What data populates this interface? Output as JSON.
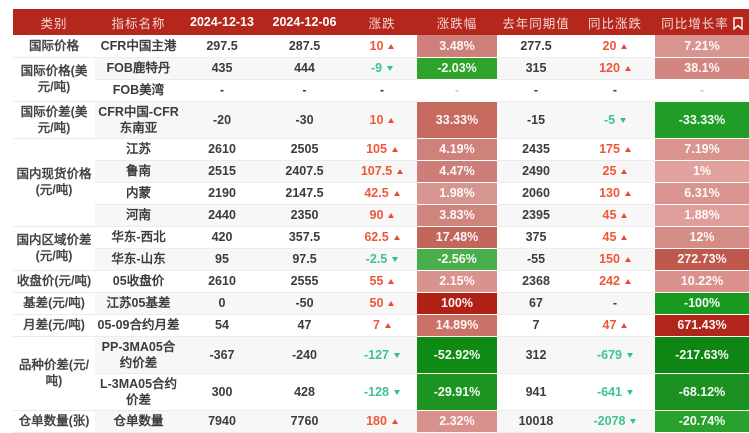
{
  "colors": {
    "header_bg": "#b5271c",
    "header_text": "#f3d7d3",
    "header_date_text": "#ffffff",
    "up_text": "#f0563a",
    "down_text": "#3fc48e",
    "up_arrow": "#e84c38",
    "down_arrow": "#34bf8b",
    "zebra_row_bg": "#f7f7f7",
    "pct_text": "#ffffff"
  },
  "table": {
    "columns": [
      "类别",
      "指标名称",
      "2024-12-13",
      "2024-12-06",
      "涨跌",
      "涨跌幅",
      "去年同期值",
      "同比涨跌",
      "同比增长率"
    ],
    "header_icon": "bookmark",
    "categories": [
      {
        "label": "国际价格",
        "span": 1
      },
      {
        "label": "国际价格(美元/吨)",
        "span": 2
      },
      {
        "label": "国际价差(美元/吨)",
        "span": 1
      },
      {
        "label": "国内现货价格(元/吨)",
        "span": 4
      },
      {
        "label": "国内区域价差(元/吨)",
        "span": 2
      },
      {
        "label": "收盘价(元/吨)",
        "span": 1
      },
      {
        "label": "基差(元/吨)",
        "span": 1
      },
      {
        "label": "月差(元/吨)",
        "span": 1
      },
      {
        "label": "品种价差(元/吨)",
        "span": 2
      },
      {
        "label": "仓单数量(张)",
        "span": 1
      }
    ],
    "rows": [
      {
        "indicator": "CFR中国主港",
        "v1": "297.5",
        "v2": "287.5",
        "chg": "10",
        "chg_dir": "up",
        "chg_pct": "3.48%",
        "chg_pct_bg": "#ce7f79",
        "last_year": "277.5",
        "yoy": "20",
        "yoy_dir": "up",
        "yoy_pct": "7.21%",
        "yoy_pct_bg": "#d9948f"
      },
      {
        "indicator": "FOB鹿特丹",
        "v1": "435",
        "v2": "444",
        "chg": "-9",
        "chg_dir": "down",
        "chg_pct": "-2.03%",
        "chg_pct_bg": "#2ea32b",
        "last_year": "315",
        "yoy": "120",
        "yoy_dir": "up",
        "yoy_pct": "38.1%",
        "yoy_pct_bg": "#d3867f"
      },
      {
        "indicator": "FOB美湾",
        "v1": "-",
        "v2": "-",
        "chg": "-",
        "chg_dir": null,
        "chg_pct": "-",
        "chg_pct_bg": null,
        "last_year": "-",
        "yoy": "-",
        "yoy_dir": null,
        "yoy_pct": "-",
        "yoy_pct_bg": null
      },
      {
        "indicator": "CFR中国-CFR东南亚",
        "v1": "-20",
        "v2": "-30",
        "chg": "10",
        "chg_dir": "up",
        "chg_pct": "33.33%",
        "chg_pct_bg": "#c66a60",
        "last_year": "-15",
        "yoy": "-5",
        "yoy_dir": "down",
        "yoy_pct": "-33.33%",
        "yoy_pct_bg": "#1f9d26"
      },
      {
        "indicator": "江苏",
        "v1": "2610",
        "v2": "2505",
        "chg": "105",
        "chg_dir": "up",
        "chg_pct": "4.19%",
        "chg_pct_bg": "#cf827c",
        "last_year": "2435",
        "yoy": "175",
        "yoy_dir": "up",
        "yoy_pct": "7.19%",
        "yoy_pct_bg": "#d9948f"
      },
      {
        "indicator": "鲁南",
        "v1": "2515",
        "v2": "2407.5",
        "chg": "107.5",
        "chg_dir": "up",
        "chg_pct": "4.47%",
        "chg_pct_bg": "#ce7e78",
        "last_year": "2490",
        "yoy": "25",
        "yoy_dir": "up",
        "yoy_pct": "1%",
        "yoy_pct_bg": "#e1a29e"
      },
      {
        "indicator": "内蒙",
        "v1": "2190",
        "v2": "2147.5",
        "chg": "42.5",
        "chg_dir": "up",
        "chg_pct": "1.98%",
        "chg_pct_bg": "#d79590",
        "last_year": "2060",
        "yoy": "130",
        "yoy_dir": "up",
        "yoy_pct": "6.31%",
        "yoy_pct_bg": "#da948f"
      },
      {
        "indicator": "河南",
        "v1": "2440",
        "v2": "2350",
        "chg": "90",
        "chg_dir": "up",
        "chg_pct": "3.83%",
        "chg_pct_bg": "#d0847e",
        "last_year": "2395",
        "yoy": "45",
        "yoy_dir": "up",
        "yoy_pct": "1.88%",
        "yoy_pct_bg": "#df9e9a"
      },
      {
        "indicator": "华东-西北",
        "v1": "420",
        "v2": "357.5",
        "chg": "62.5",
        "chg_dir": "up",
        "chg_pct": "17.48%",
        "chg_pct_bg": "#c3675d",
        "last_year": "375",
        "yoy": "45",
        "yoy_dir": "up",
        "yoy_pct": "12%",
        "yoy_pct_bg": "#d68c86"
      },
      {
        "indicator": "华东-山东",
        "v1": "95",
        "v2": "97.5",
        "chg": "-2.5",
        "chg_dir": "down",
        "chg_pct": "-2.56%",
        "chg_pct_bg": "#4aad4b",
        "last_year": "-55",
        "yoy": "150",
        "yoy_dir": "up",
        "yoy_pct": "272.73%",
        "yoy_pct_bg": "#be584d"
      },
      {
        "indicator": "05收盘价",
        "v1": "2610",
        "v2": "2555",
        "chg": "55",
        "chg_dir": "up",
        "chg_pct": "2.15%",
        "chg_pct_bg": "#d8938e",
        "last_year": "2368",
        "yoy": "242",
        "yoy_dir": "up",
        "yoy_pct": "10.22%",
        "yoy_pct_bg": "#d9918d"
      },
      {
        "indicator": "江苏05基差",
        "v1": "0",
        "v2": "-50",
        "chg": "50",
        "chg_dir": "up",
        "chg_pct": "100%",
        "chg_pct_bg": "#b12015",
        "last_year": "67",
        "yoy": "-",
        "yoy_dir": null,
        "yoy_pct": "-100%",
        "yoy_pct_bg": "#189a20"
      },
      {
        "indicator": "05-09合约月差",
        "v1": "54",
        "v2": "47",
        "chg": "7",
        "chg_dir": "up",
        "chg_pct": "14.89%",
        "chg_pct_bg": "#ca7168",
        "last_year": "7",
        "yoy": "47",
        "yoy_dir": "up",
        "yoy_pct": "671.43%",
        "yoy_pct_bg": "#b2251a"
      },
      {
        "indicator": "PP-3MA05合约价差",
        "v1": "-367",
        "v2": "-240",
        "chg": "-127",
        "chg_dir": "down",
        "chg_pct": "-52.92%",
        "chg_pct_bg": "#0f8a12",
        "last_year": "312",
        "yoy": "-679",
        "yoy_dir": "down",
        "yoy_pct": "-217.63%",
        "yoy_pct_bg": "#0f8514"
      },
      {
        "indicator": "L-3MA05合约价差",
        "v1": "300",
        "v2": "428",
        "chg": "-128",
        "chg_dir": "down",
        "chg_pct": "-29.91%",
        "chg_pct_bg": "#1d9422",
        "last_year": "941",
        "yoy": "-641",
        "yoy_dir": "down",
        "yoy_pct": "-68.12%",
        "yoy_pct_bg": "#1c9122"
      },
      {
        "indicator": "仓单数量",
        "v1": "7940",
        "v2": "7760",
        "chg": "180",
        "chg_dir": "up",
        "chg_pct": "2.32%",
        "chg_pct_bg": "#d8918c",
        "last_year": "10018",
        "yoy": "-2078",
        "yoy_dir": "down",
        "yoy_pct": "-20.74%",
        "yoy_pct_bg": "#28a12d"
      }
    ]
  }
}
